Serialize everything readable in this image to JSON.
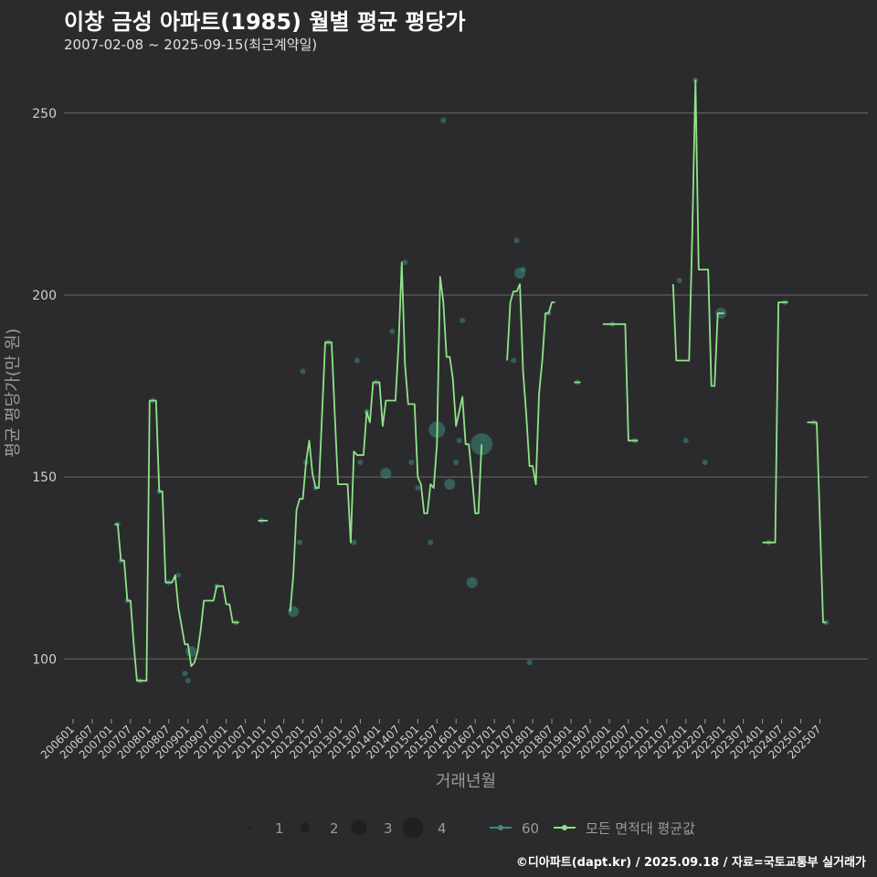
{
  "header": {
    "title": "이창 금성 아파트(1985) 월별 평균 평당가",
    "subtitle": "2007-02-08 ~ 2025-09-15(최근계약일)"
  },
  "footer": {
    "credit": "©디아파트(dapt.kr) / 2025.09.18 / 자료=국토교통부 실거래가"
  },
  "colors": {
    "background": "#2b2b2d",
    "line": "#8fe388",
    "points": "#3e8a7e",
    "grid": "#6a6a6a"
  },
  "chart_data": {
    "type": "line",
    "title": "이창 금성 아파트(1985) 월별 평균 평당가",
    "xlabel": "거래년월",
    "ylabel": "평균 평당가(만 원)",
    "ylim": [
      84,
      263
    ],
    "yticks": [
      100,
      150,
      200,
      250
    ],
    "x_ticks": [
      "200601",
      "200607",
      "200701",
      "200707",
      "200801",
      "200807",
      "200901",
      "200907",
      "201001",
      "201007",
      "201101",
      "201107",
      "201201",
      "201207",
      "201301",
      "201307",
      "201401",
      "201407",
      "201501",
      "201507",
      "201601",
      "201607",
      "201701",
      "201707",
      "201801",
      "201807",
      "201901",
      "201907",
      "202001",
      "202007",
      "202101",
      "202107",
      "202201",
      "202207",
      "202301",
      "202307",
      "202401",
      "202407",
      "202501",
      "202507"
    ],
    "x_range": [
      "200601",
      "202510"
    ],
    "grid": true,
    "legend": {
      "size_entries": [
        1,
        2,
        3,
        4
      ],
      "series_entries": [
        "60",
        "모든 면적대 평균값"
      ],
      "placement": "bottom"
    },
    "series": [
      {
        "name": "모든 면적대 평균값",
        "segments": [
          [
            [
              "2007-02",
              137
            ],
            [
              "2007-03",
              137
            ],
            [
              "2007-04",
              127
            ],
            [
              "2007-05",
              127
            ],
            [
              "2007-06",
              116
            ],
            [
              "2007-07",
              116
            ],
            [
              "2007-08",
              104
            ],
            [
              "2007-09",
              94
            ],
            [
              "2007-10",
              94
            ],
            [
              "2007-11",
              94
            ],
            [
              "2007-12",
              94
            ],
            [
              "2008-01",
              171
            ],
            [
              "2008-02",
              171
            ],
            [
              "2008-03",
              171
            ],
            [
              "2008-04",
              146
            ],
            [
              "2008-05",
              146
            ],
            [
              "2008-06",
              121
            ],
            [
              "2008-07",
              121
            ],
            [
              "2008-08",
              121
            ],
            [
              "2008-09",
              123
            ],
            [
              "2008-10",
              114
            ],
            [
              "2008-11",
              109
            ],
            [
              "2008-12",
              104
            ],
            [
              "2009-01",
              104
            ],
            [
              "2009-02",
              98
            ],
            [
              "2009-03",
              99
            ],
            [
              "2009-04",
              102
            ],
            [
              "2009-05",
              108
            ],
            [
              "2009-06",
              116
            ],
            [
              "2009-07",
              116
            ],
            [
              "2009-08",
              116
            ],
            [
              "2009-09",
              116
            ],
            [
              "2009-10",
              120
            ],
            [
              "2009-11",
              120
            ],
            [
              "2009-12",
              120
            ],
            [
              "2010-01",
              115
            ],
            [
              "2010-02",
              115
            ],
            [
              "2010-03",
              110
            ],
            [
              "2010-04",
              110
            ],
            [
              "2010-05",
              110
            ]
          ],
          [
            [
              "2010-11",
              138
            ],
            [
              "2010-12",
              138
            ],
            [
              "2011-01",
              138
            ],
            [
              "2011-02",
              138
            ]
          ],
          [
            [
              "2011-09",
              113
            ],
            [
              "2011-10",
              123
            ],
            [
              "2011-11",
              141
            ],
            [
              "2011-12",
              144
            ],
            [
              "2012-01",
              144
            ],
            [
              "2012-02",
              154
            ],
            [
              "2012-03",
              160
            ],
            [
              "2012-04",
              151
            ],
            [
              "2012-05",
              147
            ],
            [
              "2012-06",
              147
            ],
            [
              "2012-07",
              167
            ],
            [
              "2012-08",
              187
            ],
            [
              "2012-09",
              187
            ],
            [
              "2012-10",
              187
            ],
            [
              "2012-11",
              167
            ],
            [
              "2012-12",
              148
            ],
            [
              "2013-01",
              148
            ],
            [
              "2013-02",
              148
            ],
            [
              "2013-03",
              148
            ],
            [
              "2013-04",
              132
            ],
            [
              "2013-05",
              157
            ],
            [
              "2013-06",
              156
            ],
            [
              "2013-07",
              156
            ],
            [
              "2013-08",
              156
            ],
            [
              "2013-09",
              168
            ],
            [
              "2013-10",
              165
            ],
            [
              "2013-11",
              176
            ],
            [
              "2013-12",
              176
            ],
            [
              "2014-01",
              176
            ],
            [
              "2014-02",
              164
            ],
            [
              "2014-03",
              171
            ],
            [
              "2014-04",
              171
            ],
            [
              "2014-05",
              171
            ],
            [
              "2014-06",
              171
            ],
            [
              "2014-07",
              187
            ],
            [
              "2014-08",
              209
            ],
            [
              "2014-09",
              181
            ],
            [
              "2014-10",
              170
            ],
            [
              "2014-11",
              170
            ],
            [
              "2014-12",
              170
            ],
            [
              "2015-01",
              150
            ],
            [
              "2015-02",
              148
            ],
            [
              "2015-03",
              140
            ],
            [
              "2015-04",
              140
            ],
            [
              "2015-05",
              148
            ],
            [
              "2015-06",
              147
            ],
            [
              "2015-07",
              159
            ],
            [
              "2015-08",
              205
            ],
            [
              "2015-09",
              198
            ],
            [
              "2015-10",
              183
            ],
            [
              "2015-11",
              183
            ],
            [
              "2015-12",
              177
            ],
            [
              "2016-01",
              164
            ],
            [
              "2016-02",
              168
            ],
            [
              "2016-03",
              172
            ],
            [
              "2016-04",
              159
            ],
            [
              "2016-05",
              159
            ],
            [
              "2016-06",
              150
            ],
            [
              "2016-07",
              140
            ],
            [
              "2016-08",
              140
            ],
            [
              "2016-09",
              159
            ]
          ],
          [
            [
              "2017-05",
              182
            ],
            [
              "2017-06",
              198
            ],
            [
              "2017-07",
              201
            ],
            [
              "2017-08",
              201
            ],
            [
              "2017-09",
              203
            ],
            [
              "2017-10",
              179
            ],
            [
              "2017-11",
              167
            ],
            [
              "2017-12",
              153
            ],
            [
              "2018-01",
              153
            ],
            [
              "2018-02",
              148
            ],
            [
              "2018-03",
              173
            ],
            [
              "2018-04",
              182
            ],
            [
              "2018-05",
              195
            ],
            [
              "2018-06",
              195
            ],
            [
              "2018-07",
              198
            ],
            [
              "2018-08",
              198
            ]
          ],
          [
            [
              "2019-02",
              176
            ],
            [
              "2019-03",
              176
            ],
            [
              "2019-04",
              176
            ]
          ],
          [
            [
              "2019-11",
              192
            ],
            [
              "2019-12",
              192
            ],
            [
              "2020-01",
              192
            ],
            [
              "2020-02",
              192
            ],
            [
              "2020-03",
              192
            ],
            [
              "2020-04",
              192
            ],
            [
              "2020-05",
              192
            ],
            [
              "2020-06",
              192
            ],
            [
              "2020-07",
              160
            ],
            [
              "2020-08",
              160
            ],
            [
              "2020-09",
              160
            ],
            [
              "2020-10",
              160
            ]
          ],
          [
            [
              "2021-09",
              203
            ],
            [
              "2021-10",
              182
            ],
            [
              "2021-11",
              182
            ],
            [
              "2021-12",
              182
            ],
            [
              "2022-01",
              182
            ],
            [
              "2022-02",
              182
            ],
            [
              "2022-03",
              217
            ],
            [
              "2022-04",
              259
            ],
            [
              "2022-05",
              207
            ],
            [
              "2022-06",
              207
            ],
            [
              "2022-07",
              207
            ],
            [
              "2022-08",
              207
            ],
            [
              "2022-09",
              175
            ],
            [
              "2022-10",
              175
            ],
            [
              "2022-11",
              195
            ],
            [
              "2022-12",
              195
            ],
            [
              "2023-01",
              195
            ]
          ],
          [
            [
              "2024-01",
              132
            ],
            [
              "2024-02",
              132
            ],
            [
              "2024-03",
              132
            ],
            [
              "2024-04",
              132
            ],
            [
              "2024-05",
              132
            ],
            [
              "2024-06",
              198
            ],
            [
              "2024-07",
              198
            ],
            [
              "2024-08",
              198
            ],
            [
              "2024-09",
              198
            ]
          ],
          [
            [
              "2025-03",
              165
            ],
            [
              "2025-04",
              165
            ],
            [
              "2025-05",
              165
            ],
            [
              "2025-06",
              165
            ],
            [
              "2025-07",
              138
            ],
            [
              "2025-08",
              110
            ],
            [
              "2025-09",
              110
            ]
          ]
        ]
      },
      {
        "name": "60",
        "points": [
          {
            "x": "2007-03",
            "y": 137,
            "n": 1
          },
          {
            "x": "2007-04",
            "y": 127,
            "n": 1
          },
          {
            "x": "2007-06",
            "y": 116,
            "n": 1
          },
          {
            "x": "2007-10",
            "y": 94,
            "n": 1
          },
          {
            "x": "2008-02",
            "y": 171,
            "n": 1
          },
          {
            "x": "2008-04",
            "y": 146,
            "n": 1
          },
          {
            "x": "2008-07",
            "y": 121,
            "n": 1
          },
          {
            "x": "2008-10",
            "y": 123,
            "n": 1
          },
          {
            "x": "2008-12",
            "y": 96,
            "n": 1
          },
          {
            "x": "2009-01",
            "y": 94,
            "n": 1
          },
          {
            "x": "2009-02",
            "y": 102,
            "n": 2
          },
          {
            "x": "2009-10",
            "y": 120,
            "n": 1
          },
          {
            "x": "2010-04",
            "y": 110,
            "n": 1
          },
          {
            "x": "2010-12",
            "y": 138,
            "n": 1
          },
          {
            "x": "2011-10",
            "y": 113,
            "n": 2
          },
          {
            "x": "2011-12",
            "y": 132,
            "n": 1
          },
          {
            "x": "2012-01",
            "y": 179,
            "n": 1
          },
          {
            "x": "2012-02",
            "y": 154,
            "n": 1
          },
          {
            "x": "2012-05",
            "y": 147,
            "n": 1
          },
          {
            "x": "2012-09",
            "y": 187,
            "n": 1
          },
          {
            "x": "2013-05",
            "y": 132,
            "n": 1
          },
          {
            "x": "2013-06",
            "y": 182,
            "n": 1
          },
          {
            "x": "2013-07",
            "y": 154,
            "n": 1
          },
          {
            "x": "2013-09",
            "y": 168,
            "n": 1
          },
          {
            "x": "2013-12",
            "y": 176,
            "n": 1
          },
          {
            "x": "2014-03",
            "y": 151,
            "n": 2
          },
          {
            "x": "2014-05",
            "y": 190,
            "n": 1
          },
          {
            "x": "2014-09",
            "y": 209,
            "n": 1
          },
          {
            "x": "2014-11",
            "y": 154,
            "n": 1
          },
          {
            "x": "2015-01",
            "y": 147,
            "n": 1
          },
          {
            "x": "2015-05",
            "y": 132,
            "n": 1
          },
          {
            "x": "2015-07",
            "y": 163,
            "n": 3
          },
          {
            "x": "2015-09",
            "y": 248,
            "n": 1
          },
          {
            "x": "2015-11",
            "y": 148,
            "n": 2
          },
          {
            "x": "2016-01",
            "y": 154,
            "n": 1
          },
          {
            "x": "2016-02",
            "y": 160,
            "n": 1
          },
          {
            "x": "2016-03",
            "y": 193,
            "n": 1
          },
          {
            "x": "2016-06",
            "y": 121,
            "n": 2
          },
          {
            "x": "2016-09",
            "y": 159,
            "n": 4
          },
          {
            "x": "2017-07",
            "y": 182,
            "n": 1
          },
          {
            "x": "2017-08",
            "y": 215,
            "n": 1
          },
          {
            "x": "2017-09",
            "y": 206,
            "n": 2
          },
          {
            "x": "2017-10",
            "y": 207,
            "n": 1
          },
          {
            "x": "2017-12",
            "y": 99,
            "n": 1
          },
          {
            "x": "2018-06",
            "y": 195,
            "n": 1
          },
          {
            "x": "2019-03",
            "y": 176,
            "n": 1
          },
          {
            "x": "2020-02",
            "y": 192,
            "n": 1
          },
          {
            "x": "2020-09",
            "y": 160,
            "n": 1
          },
          {
            "x": "2021-11",
            "y": 204,
            "n": 1
          },
          {
            "x": "2022-01",
            "y": 160,
            "n": 1
          },
          {
            "x": "2022-04",
            "y": 259,
            "n": 1
          },
          {
            "x": "2022-07",
            "y": 154,
            "n": 1
          },
          {
            "x": "2022-12",
            "y": 195,
            "n": 2
          },
          {
            "x": "2024-03",
            "y": 132,
            "n": 1
          },
          {
            "x": "2024-08",
            "y": 198,
            "n": 1
          },
          {
            "x": "2025-05",
            "y": 165,
            "n": 1
          },
          {
            "x": "2025-09",
            "y": 110,
            "n": 1
          }
        ]
      }
    ]
  }
}
